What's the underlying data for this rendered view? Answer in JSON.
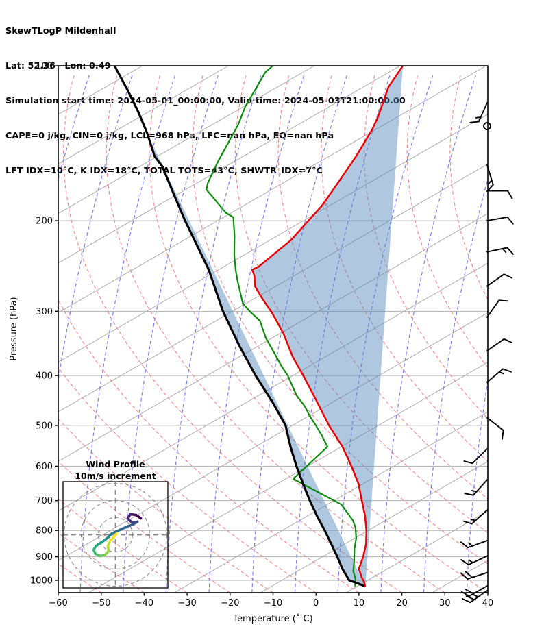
{
  "header": {
    "title": "SkewTLogP Mildenhall",
    "location": "Lat: 52.36   Lon: 0.49",
    "times": "Simulation start time: 2024-05-01_00:00:00, Valid time: 2024-05-03T21:00:00.00",
    "indices1": "CAPE=0 j/kg, CIN=0 j/kg, LCL=968 hPa, LFC=nan hPa, EQ=nan hPa",
    "indices2": "LFT IDX=10°C, K IDX=18°C, TOTAL TOTS=43°C, SHWTR_IDX=7°C"
  },
  "axes": {
    "x": {
      "label": "Temperature (˚ C)",
      "ticks": [
        {
          "v": -60,
          "label": "−60"
        },
        {
          "v": -50,
          "label": "−50"
        },
        {
          "v": -40,
          "label": "−40"
        },
        {
          "v": -30,
          "label": "−30"
        },
        {
          "v": -20,
          "label": "−20"
        },
        {
          "v": -10,
          "label": "−10"
        },
        {
          "v": 0,
          "label": "0"
        },
        {
          "v": 10,
          "label": "10"
        },
        {
          "v": 20,
          "label": "20"
        },
        {
          "v": 30,
          "label": "30"
        },
        {
          "v": 40,
          "label": "40"
        }
      ]
    },
    "y": {
      "label": "Pressure (hPa)",
      "ticks": [
        {
          "v": 100,
          "label": "100"
        },
        {
          "v": 200,
          "label": "200"
        },
        {
          "v": 300,
          "label": "300"
        },
        {
          "v": 400,
          "label": "400"
        },
        {
          "v": 500,
          "label": "500"
        },
        {
          "v": 600,
          "label": "600"
        },
        {
          "v": 700,
          "label": "700"
        },
        {
          "v": 800,
          "label": "800"
        },
        {
          "v": 900,
          "label": "900"
        },
        {
          "v": 1000,
          "label": "1000"
        }
      ]
    }
  },
  "colors": {
    "temperature": "#e60000",
    "dewpoint": "#0a8c0a",
    "parcel": "#000000",
    "shading": "#4e86b8",
    "isotherm": "#ababab",
    "pressure_grid": "#b0b0b0",
    "dry_adiabat": "#f18585",
    "moist_adiabat": "#7d7dee",
    "barb": "#000000",
    "viridis": [
      "#440154",
      "#472d7b",
      "#3b528b",
      "#2c728e",
      "#21918c",
      "#28ae80",
      "#5ec962",
      "#addc30",
      "#fde725"
    ]
  },
  "hodograph": {
    "title_line1": "Wind Profile",
    "title_line2": "10m/s increment",
    "ring_interval_ms": 10,
    "rings_ms": [
      10,
      20,
      30
    ],
    "trace_uv_ms": [
      [
        14.8,
        9.6
      ],
      [
        12,
        11.6
      ],
      [
        8.8,
        12
      ],
      [
        7.2,
        9.6
      ],
      [
        9.6,
        7.2
      ],
      [
        12.8,
        7.6
      ],
      [
        10,
        6
      ],
      [
        6,
        4.4
      ],
      [
        1.6,
        2.4
      ],
      [
        -2,
        0.8
      ],
      [
        -4,
        -1.2
      ],
      [
        -6.4,
        -3.2
      ],
      [
        -8.8,
        -4.8
      ],
      [
        -11.2,
        -6.4
      ],
      [
        -12.8,
        -8.8
      ],
      [
        -11.6,
        -11.2
      ],
      [
        -8.8,
        -12.4
      ],
      [
        -6,
        -11.6
      ],
      [
        -4,
        -9.6
      ],
      [
        -4.4,
        -6.4
      ],
      [
        -3.2,
        -3.6
      ],
      [
        -0.8,
        -1.2
      ],
      [
        0.8,
        0.8
      ]
    ]
  },
  "chart_data": {
    "type": "line",
    "variant": "skewt-logp",
    "title": "SkewTLogP Mildenhall",
    "xlabel": "Temperature (°C)",
    "ylabel": "Pressure (hPa)",
    "xlim": [
      -60,
      40
    ],
    "ylim": [
      1050,
      100
    ],
    "y_scale": "log",
    "skew_c_per_decade": 64,
    "isotherm_spacing_c": 20,
    "legend_position": "none",
    "grid": true,
    "series": [
      {
        "name": "temperature",
        "units": {
          "p": "hPa",
          "t": "C"
        },
        "points": [
          [
            100,
            -45.4
          ],
          [
            110,
            -46.1
          ],
          [
            126,
            -44.8
          ],
          [
            133,
            -44.6
          ],
          [
            150,
            -45.0
          ],
          [
            164,
            -45.7
          ],
          [
            187,
            -46.8
          ],
          [
            200,
            -48.1
          ],
          [
            218,
            -49.7
          ],
          [
            246,
            -54.0
          ],
          [
            249,
            -55.1
          ],
          [
            256,
            -53.8
          ],
          [
            268,
            -52.4
          ],
          [
            284,
            -49.0
          ],
          [
            302,
            -45.1
          ],
          [
            331,
            -39.9
          ],
          [
            367,
            -34.9
          ],
          [
            400,
            -30.0
          ],
          [
            442,
            -24.5
          ],
          [
            500,
            -17.8
          ],
          [
            550,
            -12.0
          ],
          [
            600,
            -7.5
          ],
          [
            650,
            -3.6
          ],
          [
            700,
            -0.8
          ],
          [
            750,
            1.9
          ],
          [
            800,
            4.0
          ],
          [
            850,
            5.6
          ],
          [
            900,
            6.5
          ],
          [
            950,
            7.0
          ],
          [
            988,
            8.8
          ],
          [
            1006,
            9.8
          ],
          [
            1027,
            10.7
          ]
        ]
      },
      {
        "name": "dewpoint",
        "units": {
          "p": "hPa",
          "t": "C"
        },
        "points": [
          [
            100,
            -75.7
          ],
          [
            103,
            -76.6
          ],
          [
            120,
            -77.0
          ],
          [
            130,
            -76.4
          ],
          [
            154,
            -76.5
          ],
          [
            169,
            -76.2
          ],
          [
            174,
            -75.7
          ],
          [
            193,
            -68.3
          ],
          [
            197,
            -66.0
          ],
          [
            214,
            -63.4
          ],
          [
            233,
            -61.1
          ],
          [
            250,
            -58.8
          ],
          [
            263,
            -56.9
          ],
          [
            290,
            -53.0
          ],
          [
            301,
            -50.2
          ],
          [
            313,
            -46.9
          ],
          [
            338,
            -43.4
          ],
          [
            360,
            -39.8
          ],
          [
            385,
            -36.0
          ],
          [
            400,
            -33.6
          ],
          [
            437,
            -29.1
          ],
          [
            459,
            -25.8
          ],
          [
            479,
            -23.5
          ],
          [
            498,
            -21.1
          ],
          [
            524,
            -18.1
          ],
          [
            550,
            -15.5
          ],
          [
            635,
            -19.5
          ],
          [
            712,
            -5.1
          ],
          [
            765,
            -0.4
          ],
          [
            790,
            1.1
          ],
          [
            829,
            2.6
          ],
          [
            869,
            3.5
          ],
          [
            923,
            5.1
          ],
          [
            960,
            6.0
          ],
          [
            994,
            7.5
          ],
          [
            1027,
            8.3
          ]
        ]
      },
      {
        "name": "parcel",
        "units": {
          "p": "hPa",
          "t": "C"
        },
        "points": [
          [
            1027,
            10.7
          ],
          [
            1012,
            8.3
          ],
          [
            1000,
            6.2
          ],
          [
            950,
            3.2
          ],
          [
            900,
            0.5
          ],
          [
            850,
            -2.5
          ],
          [
            800,
            -5.7
          ],
          [
            750,
            -9.3
          ],
          [
            700,
            -12.9
          ],
          [
            650,
            -16.5
          ],
          [
            600,
            -20.3
          ],
          [
            550,
            -24.1
          ],
          [
            500,
            -27.9
          ],
          [
            450,
            -33.9
          ],
          [
            400,
            -41.1
          ],
          [
            350,
            -48.6
          ],
          [
            300,
            -56.7
          ],
          [
            249,
            -65.2
          ],
          [
            200,
            -76.8
          ],
          [
            176,
            -83.2
          ],
          [
            157,
            -88.8
          ],
          [
            150,
            -91.9
          ],
          [
            135,
            -96.6
          ],
          [
            123,
            -101.2
          ],
          [
            112,
            -106.2
          ],
          [
            100,
            -112.5
          ]
        ]
      }
    ],
    "shading": {
      "between": [
        "parcel",
        "temperature"
      ],
      "meaning": "negative area (CAPE=0)",
      "opacity": 0.45
    },
    "wind_barbs": [
      {
        "p": 118,
        "dir_deg": 204,
        "full": 1,
        "half": 1
      },
      {
        "p": 131,
        "calm": true
      },
      {
        "p": 156,
        "dir_deg": 163,
        "full": 1,
        "half": 1
      },
      {
        "p": 175,
        "dir_deg": 90,
        "full": 1,
        "half": 0
      },
      {
        "p": 200,
        "dir_deg": 80,
        "full": 1,
        "half": 0
      },
      {
        "p": 230,
        "dir_deg": 78,
        "full": 1,
        "half": 1
      },
      {
        "p": 268,
        "dir_deg": 55,
        "full": 1,
        "half": 0
      },
      {
        "p": 308,
        "dir_deg": 35,
        "full": 1,
        "half": 0
      },
      {
        "p": 358,
        "dir_deg": 55,
        "full": 1,
        "half": 0
      },
      {
        "p": 412,
        "dir_deg": 50,
        "full": 1,
        "half": 1
      },
      {
        "p": 483,
        "dir_deg": 128,
        "full": 1,
        "half": 0
      },
      {
        "p": 555,
        "dir_deg": 225,
        "full": 1,
        "half": 0
      },
      {
        "p": 638,
        "dir_deg": 222,
        "full": 1,
        "half": 1
      },
      {
        "p": 730,
        "dir_deg": 228,
        "full": 1,
        "half": 1
      },
      {
        "p": 837,
        "dir_deg": 250,
        "full": 1,
        "half": 1
      },
      {
        "p": 897,
        "dir_deg": 245,
        "full": 1,
        "half": 1
      },
      {
        "p": 966,
        "dir_deg": 252,
        "full": 2,
        "half": 0
      },
      {
        "p": 1025,
        "dir_deg": 240,
        "full": 2,
        "half": 0
      },
      {
        "p": 1047,
        "dir_deg": 235,
        "full": 2,
        "half": 1
      }
    ]
  }
}
